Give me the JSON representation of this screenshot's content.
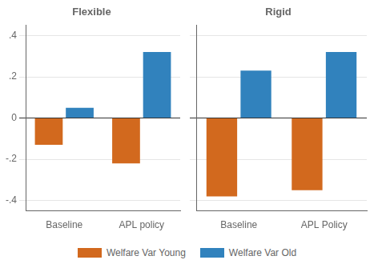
{
  "chart_data": [
    {
      "type": "bar",
      "title": "Flexible",
      "categories": [
        "Baseline",
        "APL policy"
      ],
      "series": [
        {
          "name": "Welfare Var Young",
          "color": "#d2691e",
          "values": [
            -0.13,
            -0.22
          ]
        },
        {
          "name": "Welfare Var Old",
          "color": "#3182bd",
          "values": [
            0.05,
            0.32
          ]
        }
      ],
      "ylim": [
        -0.45,
        0.45
      ],
      "yticks": [
        {
          "value": -0.4,
          "label": "-.4"
        },
        {
          "value": -0.2,
          "label": "-.2"
        },
        0,
        {
          "value": 0.2,
          "label": ".2"
        },
        {
          "value": 0.4,
          "label": ".4"
        }
      ],
      "grid": true,
      "legend": "bottom"
    },
    {
      "type": "bar",
      "title": "Rigid",
      "categories": [
        "Baseline",
        "APL Policy"
      ],
      "series": [
        {
          "name": "Welfare Var Young",
          "color": "#d2691e",
          "values": [
            -0.38,
            -0.35
          ]
        },
        {
          "name": "Welfare Var Old",
          "color": "#3182bd",
          "values": [
            0.23,
            0.32
          ]
        }
      ],
      "ylim": [
        -0.45,
        0.45
      ],
      "yticks": [
        -0.4,
        -0.2,
        0,
        0.2,
        0.4
      ],
      "grid": true,
      "tick_labels": "x"
    }
  ]
}
